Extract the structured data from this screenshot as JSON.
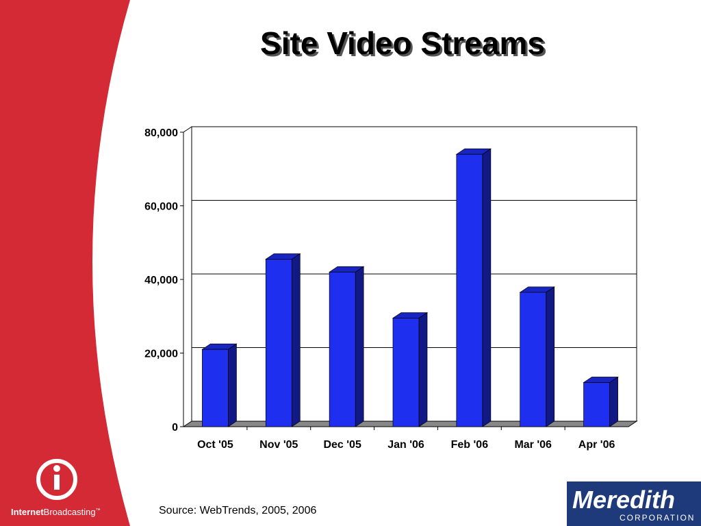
{
  "chart_data": {
    "type": "bar3d",
    "title": "Site Video Streams",
    "categories": [
      "Oct '05",
      "Nov '05",
      "Dec '05",
      "Jan '06",
      "Feb '06",
      "Mar '06",
      "Apr '06"
    ],
    "values": [
      21000,
      45500,
      42000,
      29500,
      74000,
      36500,
      12000
    ],
    "color": "#1f2ff0",
    "ylim": [
      0,
      80000
    ],
    "yticks": [
      0,
      {
        "value": 20000,
        "label": "20,000"
      },
      {
        "value": 40000,
        "label": "40,000"
      },
      {
        "value": 60000,
        "label": "60,000"
      },
      {
        "value": 80000,
        "label": "80,000"
      }
    ],
    "grid": true
  },
  "footer": {
    "source": "Source: WebTrends, 2005, 2006",
    "left_logo": {
      "bold": "Internet",
      "regular": "Broadcasting",
      "mark": "™"
    },
    "right_logo": {
      "name": "Meredith",
      "sub": "CORPORATION"
    }
  }
}
